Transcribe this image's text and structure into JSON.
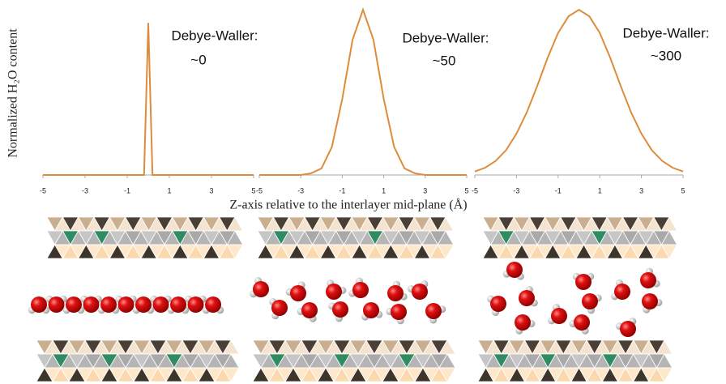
{
  "chart_data": [
    {
      "type": "line",
      "ylabel": "Normalized H₂O content",
      "annotations": [
        "Debye-Waller:",
        "~0"
      ],
      "x": [
        -5,
        -0.2,
        0,
        0.2,
        5
      ],
      "series": [
        {
          "color": "#de8c3c",
          "values": [
            0,
            0,
            0.92,
            0,
            0
          ]
        }
      ],
      "xlim": [
        -5,
        5
      ],
      "xticks": [
        -5,
        -3,
        -1,
        1,
        3,
        5
      ],
      "ylim": [
        0,
        1
      ]
    },
    {
      "type": "line",
      "xlabel": "Z-axis relative to the interlayer mid-plane (Å)",
      "annotations": [
        "Debye-Waller:",
        "~50"
      ],
      "x": [
        -5,
        -4.5,
        -4,
        -3.5,
        -3,
        -2.5,
        -2,
        -1.5,
        -1,
        -0.5,
        0,
        0.5,
        1,
        1.5,
        2,
        2.5,
        3,
        3.5,
        4,
        4.5,
        5
      ],
      "series": [
        {
          "color": "#de8c3c",
          "values": [
            0,
            0,
            0,
            0,
            0,
            0.01,
            0.04,
            0.17,
            0.46,
            0.82,
            1,
            0.82,
            0.46,
            0.17,
            0.04,
            0.01,
            0,
            0,
            0,
            0,
            0
          ]
        }
      ],
      "xlim": [
        -5,
        5
      ],
      "xticks": [
        -5,
        -3,
        -1,
        1,
        3,
        5
      ],
      "ylim": [
        0,
        1
      ]
    },
    {
      "type": "line",
      "annotations": [
        "Debye-Waller:",
        "~300"
      ],
      "x": [
        -5,
        -4.5,
        -4,
        -3.5,
        -3,
        -2.5,
        -2,
        -1.5,
        -1,
        -0.5,
        0,
        0.5,
        1,
        1.5,
        2,
        2.5,
        3,
        3.5,
        4,
        4.5,
        5
      ],
      "series": [
        {
          "color": "#de8c3c",
          "values": [
            0.021,
            0.044,
            0.085,
            0.15,
            0.25,
            0.38,
            0.54,
            0.71,
            0.86,
            0.96,
            1,
            0.96,
            0.86,
            0.71,
            0.54,
            0.38,
            0.25,
            0.15,
            0.085,
            0.044,
            0.021
          ]
        }
      ],
      "xlim": [
        -5,
        5
      ],
      "xticks": [
        -5,
        -3,
        -1,
        1,
        3,
        5
      ],
      "ylim": [
        0,
        1
      ]
    }
  ]
}
